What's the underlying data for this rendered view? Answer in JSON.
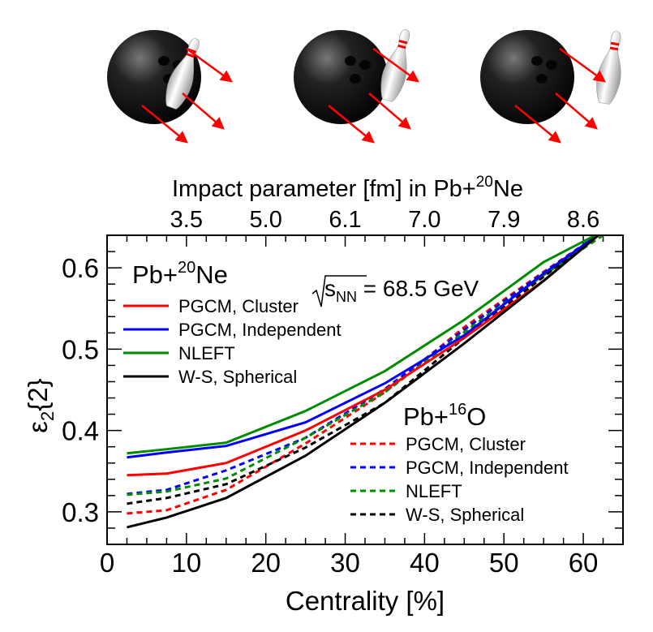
{
  "chart_data": {
    "type": "line",
    "xlabel": "Centrality [%]",
    "ylabel": {
      "main": "ε",
      "sub": "2",
      "suffix": "{2}"
    },
    "xlim": [
      0,
      65
    ],
    "ylim": [
      0.26,
      0.64
    ],
    "xticks": [
      0,
      10,
      20,
      30,
      40,
      50,
      60
    ],
    "yticks": [
      0.3,
      0.4,
      0.5,
      0.6
    ],
    "ytick_labels": [
      "0.3",
      "0.4",
      "0.5",
      "0.6"
    ],
    "top_axis": {
      "title": "Impact parameter [fm] in Pb+",
      "title_sup": "20",
      "title_tail": "Ne",
      "positions": [
        10,
        20,
        30,
        40,
        50,
        60
      ],
      "labels": [
        "3.5",
        "5.0",
        "6.1",
        "7.0",
        "7.9",
        "8.6"
      ]
    },
    "annotation": {
      "sqrt": "s",
      "sub": "NN",
      "rest": " = 68.5 GeV"
    },
    "groups": [
      {
        "prefix": "Pb+",
        "sup": "20",
        "suffix": "Ne",
        "style": "solid"
      },
      {
        "prefix": "Pb+",
        "sup": "16",
        "suffix": "O",
        "style": "dashed"
      }
    ],
    "x": [
      2.5,
      7.5,
      15,
      25,
      35,
      45,
      55,
      62.5
    ],
    "series": [
      {
        "name": "PGCM, Cluster",
        "group": 0,
        "color": "#ff0000",
        "values": [
          0.345,
          0.347,
          0.36,
          0.4,
          0.45,
          0.514,
          0.584,
          0.645
        ]
      },
      {
        "name": "PGCM, Independent",
        "group": 0,
        "color": "#0000ff",
        "values": [
          0.367,
          0.373,
          0.381,
          0.41,
          0.458,
          0.517,
          0.593,
          0.645
        ]
      },
      {
        "name": "NLEFT",
        "group": 0,
        "color": "#008c00",
        "values": [
          0.372,
          0.377,
          0.385,
          0.424,
          0.473,
          0.536,
          0.607,
          0.645
        ]
      },
      {
        "name": "W-S, Spherical",
        "group": 0,
        "color": "#000000",
        "values": [
          0.281,
          0.293,
          0.317,
          0.369,
          0.434,
          0.507,
          0.584,
          0.645
        ]
      },
      {
        "name": "PGCM, Cluster",
        "group": 1,
        "color": "#ff0000",
        "values": [
          0.298,
          0.302,
          0.327,
          0.384,
          0.447,
          0.527,
          0.595,
          0.645
        ]
      },
      {
        "name": "PGCM, Independent",
        "group": 1,
        "color": "#0000ff",
        "values": [
          0.322,
          0.327,
          0.351,
          0.391,
          0.451,
          0.524,
          0.594,
          0.645
        ]
      },
      {
        "name": "NLEFT",
        "group": 1,
        "color": "#008c00",
        "values": [
          0.321,
          0.325,
          0.341,
          0.391,
          0.447,
          0.521,
          0.591,
          0.64
        ]
      },
      {
        "name": "W-S, Spherical",
        "group": 1,
        "color": "#000000",
        "values": [
          0.31,
          0.317,
          0.334,
          0.379,
          0.434,
          0.514,
          0.589,
          0.645
        ]
      }
    ]
  }
}
